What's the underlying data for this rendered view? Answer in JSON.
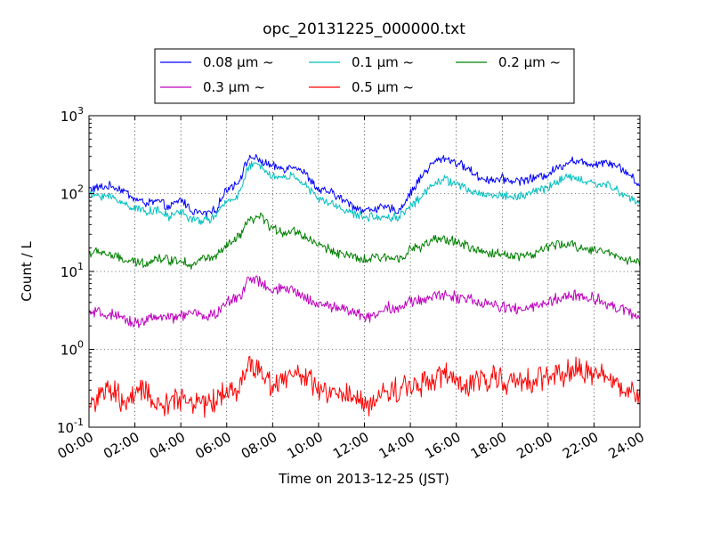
{
  "chart_data": {
    "type": "line",
    "title": "opc_20131225_000000.txt",
    "xlabel": "Time on 2013-12-25 (JST)",
    "ylabel": "Count / L",
    "yscale": "log",
    "xlim": [
      "00:00",
      "24:00"
    ],
    "ylim": [
      0.1,
      1000
    ],
    "grid": true,
    "legend_position": "top-center",
    "x_ticks": [
      "00:00",
      "02:00",
      "04:00",
      "06:00",
      "08:00",
      "10:00",
      "12:00",
      "14:00",
      "16:00",
      "18:00",
      "20:00",
      "22:00",
      "24:00"
    ],
    "y_ticks": [
      {
        "base": "10",
        "exp": "-1",
        "value": 0.1
      },
      {
        "base": "10",
        "exp": "0",
        "value": 1
      },
      {
        "base": "10",
        "exp": "1",
        "value": 10
      },
      {
        "base": "10",
        "exp": "2",
        "value": 100
      },
      {
        "base": "10",
        "exp": "3",
        "value": 1000
      }
    ],
    "x": [
      "00:00",
      "00:30",
      "01:00",
      "01:30",
      "02:00",
      "02:30",
      "03:00",
      "03:30",
      "04:00",
      "04:30",
      "05:00",
      "05:30",
      "06:00",
      "06:30",
      "07:00",
      "07:30",
      "08:00",
      "08:30",
      "09:00",
      "09:30",
      "10:00",
      "10:30",
      "11:00",
      "11:30",
      "12:00",
      "12:30",
      "13:00",
      "13:30",
      "14:00",
      "14:30",
      "15:00",
      "15:30",
      "16:00",
      "16:30",
      "17:00",
      "17:30",
      "18:00",
      "18:30",
      "19:00",
      "19:30",
      "20:00",
      "20:30",
      "21:00",
      "21:30",
      "22:00",
      "22:30",
      "23:00",
      "23:30",
      "24:00"
    ],
    "series": [
      {
        "name": "0.08 μm ~",
        "color": "#0000ff",
        "values": [
          115,
          120,
          125,
          110,
          85,
          75,
          80,
          65,
          85,
          60,
          55,
          60,
          115,
          140,
          300,
          260,
          220,
          210,
          230,
          170,
          110,
          105,
          85,
          70,
          60,
          65,
          65,
          60,
          100,
          170,
          250,
          290,
          250,
          210,
          160,
          150,
          155,
          145,
          150,
          160,
          180,
          220,
          270,
          250,
          240,
          260,
          230,
          180,
          125
        ]
      },
      {
        "name": "0.1 μm ~",
        "color": "#00bfbf",
        "values": [
          95,
          95,
          90,
          75,
          65,
          60,
          60,
          50,
          60,
          45,
          45,
          50,
          80,
          95,
          230,
          230,
          165,
          160,
          170,
          120,
          85,
          75,
          65,
          55,
          50,
          50,
          50,
          50,
          70,
          90,
          140,
          150,
          135,
          110,
          100,
          95,
          95,
          90,
          95,
          110,
          120,
          150,
          165,
          145,
          135,
          130,
          110,
          90,
          75
        ]
      },
      {
        "name": "0.2 μm ~",
        "color": "#008000",
        "values": [
          17,
          18,
          16,
          14,
          13,
          13,
          15,
          14,
          14,
          12,
          15,
          15,
          21,
          27,
          45,
          50,
          35,
          32,
          33,
          27,
          22,
          19,
          17,
          15,
          14,
          15,
          15,
          15,
          19,
          21,
          25,
          26,
          24,
          21,
          18,
          17,
          17,
          16,
          16,
          17,
          21,
          22,
          22,
          20,
          19,
          18,
          16,
          14,
          13
        ]
      },
      {
        "name": "0.3 μm ~",
        "color": "#bf00bf",
        "values": [
          2.9,
          2.9,
          2.7,
          2.4,
          2.2,
          2.4,
          2.6,
          2.5,
          2.7,
          2.9,
          2.7,
          2.8,
          4.0,
          4.5,
          8.5,
          7.0,
          5.5,
          6.0,
          5.5,
          4.5,
          3.8,
          3.6,
          3.4,
          3.0,
          2.6,
          2.8,
          3.5,
          3.4,
          4.0,
          4.3,
          4.8,
          5.0,
          4.8,
          4.3,
          4.0,
          3.7,
          3.5,
          3.3,
          3.3,
          3.6,
          4.0,
          4.5,
          5.0,
          4.7,
          4.5,
          4.0,
          3.5,
          3.0,
          2.5
        ]
      },
      {
        "name": "0.5 μm ~",
        "color": "#ff0000",
        "values": [
          0.2,
          0.25,
          0.3,
          0.2,
          0.25,
          0.3,
          0.18,
          0.2,
          0.25,
          0.22,
          0.2,
          0.22,
          0.3,
          0.3,
          0.7,
          0.5,
          0.35,
          0.45,
          0.5,
          0.4,
          0.3,
          0.27,
          0.26,
          0.23,
          0.2,
          0.22,
          0.3,
          0.3,
          0.35,
          0.38,
          0.42,
          0.48,
          0.38,
          0.3,
          0.42,
          0.45,
          0.42,
          0.35,
          0.38,
          0.42,
          0.45,
          0.48,
          0.55,
          0.5,
          0.5,
          0.45,
          0.35,
          0.3,
          0.25
        ]
      }
    ]
  }
}
